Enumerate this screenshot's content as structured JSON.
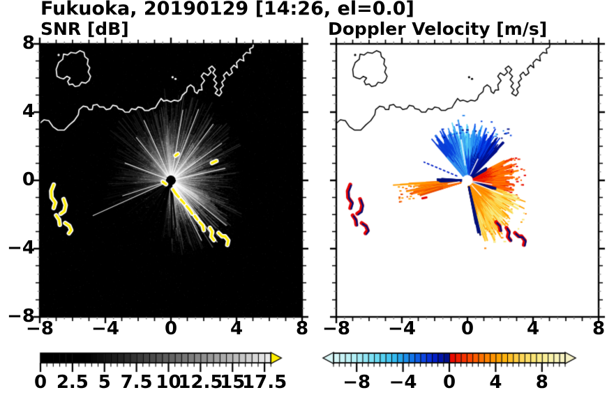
{
  "title": "Fukuoka, 20190129 [14:26, el=0.0]",
  "chart_data": [
    {
      "type": "heatmap",
      "subtype": "radar-ppi-snr",
      "title": "SNR [dB]",
      "xlim": [
        -8,
        8
      ],
      "ylim": [
        -8,
        8
      ],
      "xticks": [
        -8,
        -4,
        0,
        4,
        8
      ],
      "yticks": [
        8,
        4,
        0,
        -4,
        -8
      ],
      "minor_tick_step": 0.5,
      "background": "#000000",
      "coast_color": "#ffffff",
      "radar_center": [
        0,
        0
      ],
      "colorbar": {
        "orientation": "horizontal",
        "vmin": 0,
        "vmax": 18,
        "segment_step": 0.5,
        "ticks": [
          0,
          2.5,
          5,
          7.5,
          10,
          12.5,
          15,
          17.5
        ],
        "scale": "grayscale-black-to-white",
        "ramp_start": 3.5,
        "over_arrow_color": "#ffee00"
      },
      "echo_sectors": [
        {
          "a0": -90,
          "a1": -58,
          "i": 0.42,
          "r": 4.3
        },
        {
          "a0": -58,
          "a1": -20,
          "i": 0.5,
          "r": 4.6
        },
        {
          "a0": -20,
          "a1": 25,
          "i": 0.28,
          "r": 4.0
        },
        {
          "a0": 25,
          "a1": 60,
          "i": 0.35,
          "r": 4.6
        },
        {
          "a0": 60,
          "a1": 100,
          "i": 0.32,
          "r": 5.2
        },
        {
          "a0": 100,
          "a1": 145,
          "i": 0.22,
          "r": 4.6
        },
        {
          "a0": 145,
          "a1": 185,
          "i": 0.14,
          "r": 3.8
        },
        {
          "a0": 185,
          "a1": 205,
          "i": 0.08,
          "r": 4.2
        },
        {
          "a0": 205,
          "a1": 262,
          "i": 0.04,
          "r": 3.5
        },
        {
          "a0": 262,
          "a1": 270,
          "i": 0.2,
          "r": 3.2
        }
      ],
      "bright_rays": [
        {
          "az": 203.5,
          "len": 5.2
        },
        {
          "az": 197,
          "len": 3.1
        },
        {
          "az": -52,
          "len": 4.6
        },
        {
          "az": -38,
          "len": 4.3
        },
        {
          "az": -62,
          "len": 4.0
        },
        {
          "az": 52,
          "len": 4.2
        },
        {
          "az": 68,
          "len": 4.5
        },
        {
          "az": 80,
          "len": 4.2
        },
        {
          "az": 35,
          "len": 3.8
        },
        {
          "az": 12,
          "len": 3.4
        },
        {
          "az": 115,
          "len": 3.9
        },
        {
          "az": 130,
          "len": 3.3
        },
        {
          "az": 160,
          "len": 3.0
        }
      ],
      "dark_rays": [
        {
          "az": 237,
          "len": 4.2
        },
        {
          "az": 245,
          "len": 4.5
        },
        {
          "az": 256,
          "len": 3.2
        },
        {
          "az": -84,
          "len": 2.8
        },
        {
          "az": -89,
          "len": 3.4
        }
      ],
      "speckle": {
        "sector_dots": 9000,
        "background_dots": 2600
      },
      "clutter_color": "#ffee00",
      "clutter_halo": "#ffffff"
    },
    {
      "type": "heatmap",
      "subtype": "radar-ppi-doppler-velocity",
      "title": "Doppler Velocity [m/s]",
      "xlim": [
        -8,
        8
      ],
      "ylim": [
        -8,
        8
      ],
      "xticks": [
        -8,
        -4,
        0,
        4,
        8
      ],
      "yticks": [
        8,
        4,
        0,
        -4,
        -8
      ],
      "minor_tick_step": 0.5,
      "background": "#ffffff",
      "coast_color": "#000000",
      "radar_center": [
        0,
        0
      ],
      "center_gap_radius": 0.33,
      "colorbar": {
        "orientation": "horizontal",
        "vmin": -10,
        "vmax": 10,
        "segment_step": 0.5,
        "ticks": [
          -8,
          -4,
          0,
          4,
          8
        ],
        "scale": "diverging-cyan-blue-navy-red-orange-yellow",
        "under_arrow_color": "#d9f6f6",
        "over_arrow_color": "#f6f2c6",
        "stops": [
          [
            -10,
            "#d9f6f6"
          ],
          [
            -8,
            "#aeeef5"
          ],
          [
            -6,
            "#5fd7f2"
          ],
          [
            -4.5,
            "#2ab3ee"
          ],
          [
            -3.2,
            "#1272e8"
          ],
          [
            -2,
            "#0a3ae0"
          ],
          [
            -1,
            "#0016bc"
          ],
          [
            -0.01,
            "#000e7a"
          ],
          [
            0.01,
            "#e60000"
          ],
          [
            1.5,
            "#fa3c00"
          ],
          [
            3,
            "#ff7b00"
          ],
          [
            4.5,
            "#ffab00"
          ],
          [
            6,
            "#ffd24e"
          ],
          [
            7.5,
            "#fae97e"
          ],
          [
            9,
            "#f8f3b2"
          ],
          [
            10,
            "#f6f2c6"
          ]
        ]
      },
      "velocity_fans": [
        {
          "name": "approaching-blue-fan",
          "a0": 44,
          "a1": 132,
          "r0": 0.33,
          "r1": 3.15,
          "scatter": 30,
          "bands": [
            [
              44,
              "#001088"
            ],
            [
              58,
              "#0026d0"
            ],
            [
              72,
              "#0a50ee"
            ],
            [
              84,
              "#2f9cf2"
            ],
            [
              96,
              "#5cd4f6"
            ],
            [
              106,
              "#2f8aee"
            ],
            [
              118,
              "#0a46e0"
            ],
            [
              132,
              "#0b3cd4"
            ]
          ]
        },
        {
          "name": "receding-right-fan",
          "a0": -16,
          "a1": 27,
          "r0": 0.33,
          "r1": 2.85,
          "scatter": 26,
          "radial": true,
          "palette": [
            "#e60000",
            "#f03000",
            "#ff5e00",
            "#ff7e00"
          ]
        },
        {
          "name": "receding-downright-fan",
          "a0": -78,
          "a1": -16,
          "r0": 0.35,
          "r1": 3.35,
          "scatter": 24,
          "radial": true,
          "core_yellow": [
            -66,
            -36
          ],
          "tail": {
            "a0": -74,
            "a1": -58,
            "extra": 0.55
          },
          "palette": [
            "#ff8000",
            "#ffa200",
            "#ffc936",
            "#f8e87c"
          ]
        },
        {
          "name": "receding-left-streak",
          "a0": 183,
          "a1": 197,
          "r0": 0.45,
          "r1": 3.55,
          "scatter": 18,
          "palette": [
            "#ff8a00",
            "#ff9e00",
            "#e84a00",
            "#ff6a00"
          ]
        }
      ],
      "navy_edges": [
        {
          "a0": -79,
          "a1": -75.5,
          "r0": 0.4,
          "r1": 3.0,
          "color": "#001078"
        },
        {
          "a0": -17.5,
          "a1": -14,
          "r0": 0.4,
          "r1": 1.6,
          "color": "#001078"
        },
        {
          "a0": 28,
          "a1": 33,
          "r0": 0.4,
          "r1": 1.2,
          "color": "#001078"
        },
        {
          "a0": 176.5,
          "a1": 183,
          "r0": 0.35,
          "r1": 1.65,
          "color": "#001078"
        }
      ],
      "gap_rays": [
        {
          "az": -9,
          "r0": 0.35,
          "r1": 1.5
        },
        {
          "az": -21,
          "r0": 0.35,
          "r1": 2.3
        },
        {
          "az": -47,
          "r0": 0.4,
          "r1": 1.2
        },
        {
          "az": 63,
          "r0": 0.4,
          "r1": 1.4
        },
        {
          "az": 99,
          "r0": 0.9,
          "r1": 2.4
        },
        {
          "az": 190,
          "r0": 0.5,
          "r1": 1.2
        }
      ],
      "dotted_ray": {
        "azimuth_deg": 158,
        "r0": 0.7,
        "r1": 2.85,
        "color": "#0a28c8"
      },
      "red_dash": [
        [
          -2.75,
          -1.05
        ],
        [
          -2.5,
          -1.0
        ]
      ],
      "clutter_primary": "#e60000",
      "clutter_secondary": "#001078"
    }
  ],
  "coastline": {
    "island": [
      [
        -6.95,
        6.1
      ],
      [
        -7.0,
        6.5
      ],
      [
        -6.85,
        6.9
      ],
      [
        -6.6,
        7.1
      ],
      [
        -6.55,
        7.4
      ],
      [
        -6.3,
        7.35
      ],
      [
        -6.1,
        7.5
      ],
      [
        -5.8,
        7.45
      ],
      [
        -5.55,
        7.6
      ],
      [
        -5.3,
        7.5
      ],
      [
        -5.25,
        7.25
      ],
      [
        -5.05,
        7.1
      ],
      [
        -5.1,
        6.8
      ],
      [
        -4.95,
        6.6
      ],
      [
        -5.05,
        6.35
      ],
      [
        -4.9,
        6.1
      ],
      [
        -5.0,
        5.85
      ],
      [
        -5.2,
        5.7
      ],
      [
        -5.45,
        5.75
      ],
      [
        -5.6,
        5.55
      ],
      [
        -5.85,
        5.5
      ],
      [
        -6.0,
        5.65
      ],
      [
        -6.2,
        5.6
      ],
      [
        -6.3,
        5.8
      ],
      [
        -6.15,
        6.0
      ],
      [
        -6.35,
        6.1
      ],
      [
        -6.55,
        5.95
      ],
      [
        -6.75,
        6.0
      ],
      [
        -6.95,
        6.1
      ]
    ],
    "mainland": [
      [
        -8.05,
        3.3
      ],
      [
        -7.75,
        3.55
      ],
      [
        -7.45,
        3.5
      ],
      [
        -7.2,
        3.15
      ],
      [
        -6.9,
        2.95
      ],
      [
        -6.5,
        2.95
      ],
      [
        -6.2,
        3.25
      ],
      [
        -5.9,
        3.5
      ],
      [
        -5.65,
        3.85
      ],
      [
        -5.6,
        4.15
      ],
      [
        -5.35,
        4.35
      ],
      [
        -5.1,
        4.3
      ],
      [
        -5.0,
        4.15
      ],
      [
        -4.8,
        4.15
      ],
      [
        -4.75,
        4.4
      ],
      [
        -4.5,
        4.45
      ],
      [
        -4.35,
        4.3
      ],
      [
        -4.1,
        4.3
      ],
      [
        -3.95,
        4.15
      ],
      [
        -3.7,
        4.2
      ],
      [
        -3.55,
        4.4
      ],
      [
        -3.3,
        4.35
      ],
      [
        -3.2,
        4.2
      ],
      [
        -2.95,
        4.15
      ],
      [
        -2.8,
        4.0
      ],
      [
        -2.55,
        4.0
      ],
      [
        -2.4,
        4.2
      ],
      [
        -2.15,
        4.15
      ],
      [
        -2.0,
        4.3
      ],
      [
        -1.75,
        4.25
      ],
      [
        -1.6,
        4.1
      ],
      [
        -1.35,
        4.1
      ],
      [
        -1.2,
        4.2
      ],
      [
        -0.95,
        4.25
      ],
      [
        -0.8,
        4.5
      ],
      [
        -0.6,
        4.8
      ],
      [
        -0.45,
        4.65
      ],
      [
        -0.25,
        4.7
      ],
      [
        0.0,
        4.6
      ],
      [
        0.2,
        4.7
      ],
      [
        0.45,
        4.65
      ],
      [
        0.6,
        4.75
      ],
      [
        0.7,
        5.0
      ],
      [
        0.95,
        5.2
      ],
      [
        1.0,
        5.45
      ],
      [
        1.2,
        5.6
      ],
      [
        1.4,
        5.45
      ],
      [
        1.45,
        5.2
      ],
      [
        1.6,
        5.1
      ],
      [
        1.7,
        5.3
      ],
      [
        1.9,
        5.3
      ],
      [
        1.85,
        5.6
      ],
      [
        2.05,
        5.85
      ],
      [
        1.85,
        6.1
      ],
      [
        2.0,
        6.3
      ],
      [
        2.25,
        6.15
      ],
      [
        2.45,
        6.35
      ],
      [
        2.3,
        6.55
      ],
      [
        2.5,
        6.7
      ],
      [
        2.7,
        6.5
      ],
      [
        2.55,
        6.3
      ],
      [
        2.75,
        6.1
      ],
      [
        2.6,
        5.9
      ],
      [
        2.8,
        5.7
      ],
      [
        2.65,
        5.5
      ],
      [
        2.85,
        5.3
      ],
      [
        2.7,
        5.1
      ],
      [
        2.95,
        4.95
      ],
      [
        3.1,
        5.15
      ],
      [
        3.0,
        5.35
      ],
      [
        3.2,
        5.55
      ],
      [
        3.1,
        5.75
      ],
      [
        3.3,
        5.95
      ],
      [
        3.2,
        6.15
      ],
      [
        3.4,
        6.35
      ],
      [
        3.55,
        6.15
      ],
      [
        3.75,
        6.3
      ],
      [
        3.65,
        6.55
      ],
      [
        3.85,
        6.75
      ],
      [
        4.05,
        6.6
      ],
      [
        4.0,
        6.9
      ],
      [
        4.2,
        7.1
      ],
      [
        4.45,
        7.0
      ],
      [
        4.4,
        7.3
      ],
      [
        4.6,
        7.5
      ],
      [
        4.85,
        7.45
      ],
      [
        4.8,
        7.7
      ],
      [
        5.0,
        7.8
      ],
      [
        5.05,
        8.1
      ]
    ],
    "dots": [
      [
        -6.85,
        7.35
      ],
      [
        0.1,
        6.05
      ],
      [
        0.28,
        5.95
      ]
    ]
  },
  "clutter_blobs": {
    "west": [
      [
        [
          -7.15,
          -0.25
        ],
        [
          -7.3,
          -0.62
        ],
        [
          -7.28,
          -1.0
        ],
        [
          -7.05,
          -1.3
        ],
        [
          -7.15,
          -1.62
        ]
      ],
      [
        [
          -6.55,
          -1.1
        ],
        [
          -6.42,
          -1.45
        ],
        [
          -6.5,
          -1.8
        ],
        [
          -6.72,
          -1.95
        ]
      ],
      [
        [
          -7.0,
          -2.05
        ],
        [
          -6.82,
          -2.3
        ],
        [
          -6.78,
          -2.6
        ]
      ],
      [
        [
          -6.45,
          -2.5
        ],
        [
          -6.2,
          -2.66
        ],
        [
          -6.08,
          -2.92
        ],
        [
          -6.22,
          -3.1
        ]
      ]
    ],
    "chain_near": [
      [
        [
          -0.5,
          -0.08
        ],
        [
          -0.3,
          -0.22
        ]
      ],
      [
        [
          0.12,
          -0.52
        ],
        [
          0.3,
          -0.78
        ],
        [
          0.5,
          -1.0
        ]
      ],
      [
        [
          0.6,
          -1.12
        ],
        [
          0.82,
          -1.35
        ]
      ],
      [
        [
          0.95,
          -1.5
        ],
        [
          1.15,
          -1.73
        ],
        [
          1.3,
          -1.95
        ]
      ],
      [
        [
          1.45,
          -2.08
        ],
        [
          1.62,
          -2.3
        ]
      ],
      [
        [
          0.28,
          1.45
        ],
        [
          0.42,
          1.55
        ]
      ]
    ],
    "chain_far": [
      [
        [
          1.75,
          -2.45
        ],
        [
          1.95,
          -2.65
        ],
        [
          2.0,
          -2.92
        ]
      ],
      [
        [
          2.38,
          -2.78
        ],
        [
          2.52,
          -3.0
        ],
        [
          2.46,
          -3.3
        ],
        [
          2.62,
          -3.5
        ]
      ],
      [
        [
          2.9,
          -3.08
        ],
        [
          3.12,
          -3.28
        ],
        [
          3.3,
          -3.28
        ],
        [
          3.5,
          -3.52
        ],
        [
          3.44,
          -3.78
        ]
      ]
    ],
    "dash": [
      [
        [
          2.5,
          1.02
        ],
        [
          2.78,
          1.14
        ]
      ]
    ]
  }
}
